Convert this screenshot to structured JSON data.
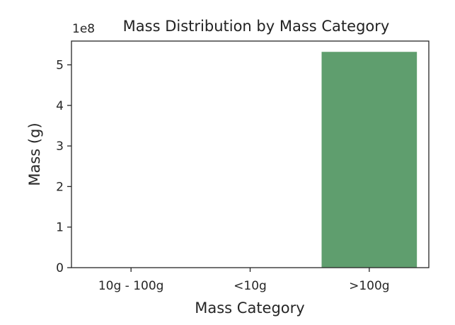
{
  "chart_data": {
    "type": "bar",
    "title": "Mass Distribution by Mass Category",
    "xlabel": "Mass Category",
    "ylabel": "Mass (g)",
    "categories": [
      "10g - 100g",
      "<10g",
      ">100g"
    ],
    "values": [
      0,
      0,
      532000000
    ],
    "y_offset_text": "1e8",
    "y_ticks": [
      0,
      100000000,
      200000000,
      300000000,
      400000000,
      500000000
    ],
    "y_tick_labels": [
      "0",
      "1",
      "2",
      "3",
      "4",
      "5"
    ],
    "ylim": [
      0,
      558600000
    ],
    "bar_color": "#5f9e6e",
    "grid": false,
    "legend": "none"
  }
}
